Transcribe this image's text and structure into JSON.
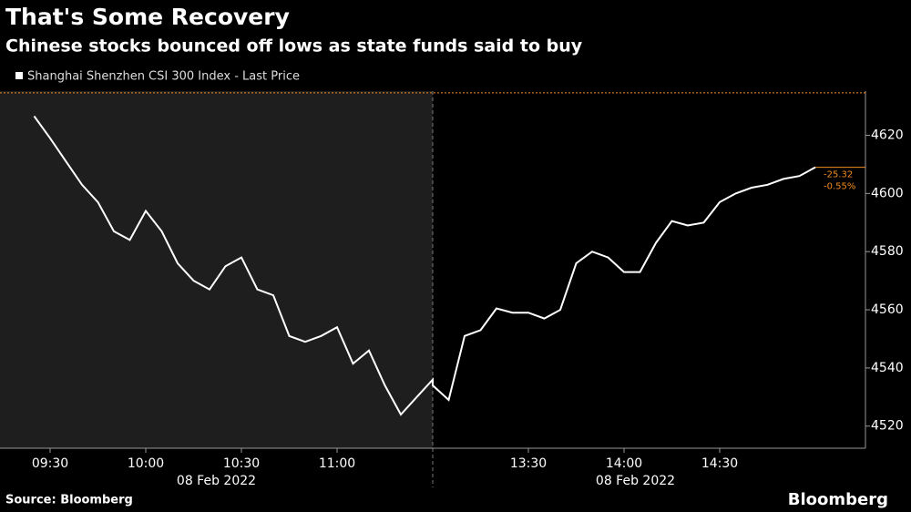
{
  "chart_data": {
    "type": "line",
    "title": "That's Some Recovery",
    "subtitle": "Chinese stocks bounced off lows as state funds said to buy",
    "source": "Source: Bloomberg",
    "brand": "Bloomberg",
    "x": [
      "09:25",
      "09:30",
      "09:35",
      "09:40",
      "09:45",
      "09:50",
      "09:55",
      "10:00",
      "10:05",
      "10:10",
      "10:15",
      "10:20",
      "10:25",
      "10:30",
      "10:35",
      "10:40",
      "10:45",
      "10:50",
      "10:55",
      "11:00",
      "11:05",
      "11:10",
      "11:15",
      "11:20",
      "11:25",
      "11:30",
      "13:00",
      "13:05",
      "13:10",
      "13:15",
      "13:20",
      "13:25",
      "13:30",
      "13:35",
      "13:40",
      "13:45",
      "13:50",
      "13:55",
      "14:00",
      "14:05",
      "14:10",
      "14:15",
      "14:20",
      "14:25",
      "14:30",
      "14:35",
      "14:40",
      "14:45",
      "14:50",
      "14:55",
      "15:00"
    ],
    "series": [
      {
        "name": "Shanghai Shenzhen CSI 300 Index - Last Price",
        "color": "#ffffff",
        "values": [
          4626.6,
          4619,
          4611,
          4603,
          4597,
          4587,
          4584,
          4594,
          4587,
          4576,
          4570,
          4567,
          4575,
          4578,
          4567,
          4565,
          4551,
          4549,
          4551,
          4554,
          4541.5,
          4546,
          4534,
          4524,
          4530,
          4536,
          4534,
          4529,
          4551,
          4553,
          4560.5,
          4559,
          4559,
          4557,
          4560,
          4576,
          4580,
          4578,
          4573,
          4573,
          4583,
          4590.5,
          4589,
          4590,
          4597,
          4600,
          4602,
          4603,
          4605,
          4606,
          4609
        ]
      }
    ],
    "ylim": [
      4512.4,
      4635.2
    ],
    "yticks": [
      4520,
      4540,
      4560,
      4580,
      4600,
      4620
    ],
    "xticks": [
      "09:30",
      "10:00",
      "10:30",
      "11:00",
      "13:30",
      "14:00",
      "14:30"
    ],
    "session_labels": [
      "08 Feb 2022",
      "08 Feb 2022"
    ],
    "reference_line": {
      "value": 4634.6,
      "color": "#f28c1e"
    },
    "change_labels": [
      "-25.32",
      "-0.55%"
    ],
    "morning_background": "#1e1e1e"
  }
}
